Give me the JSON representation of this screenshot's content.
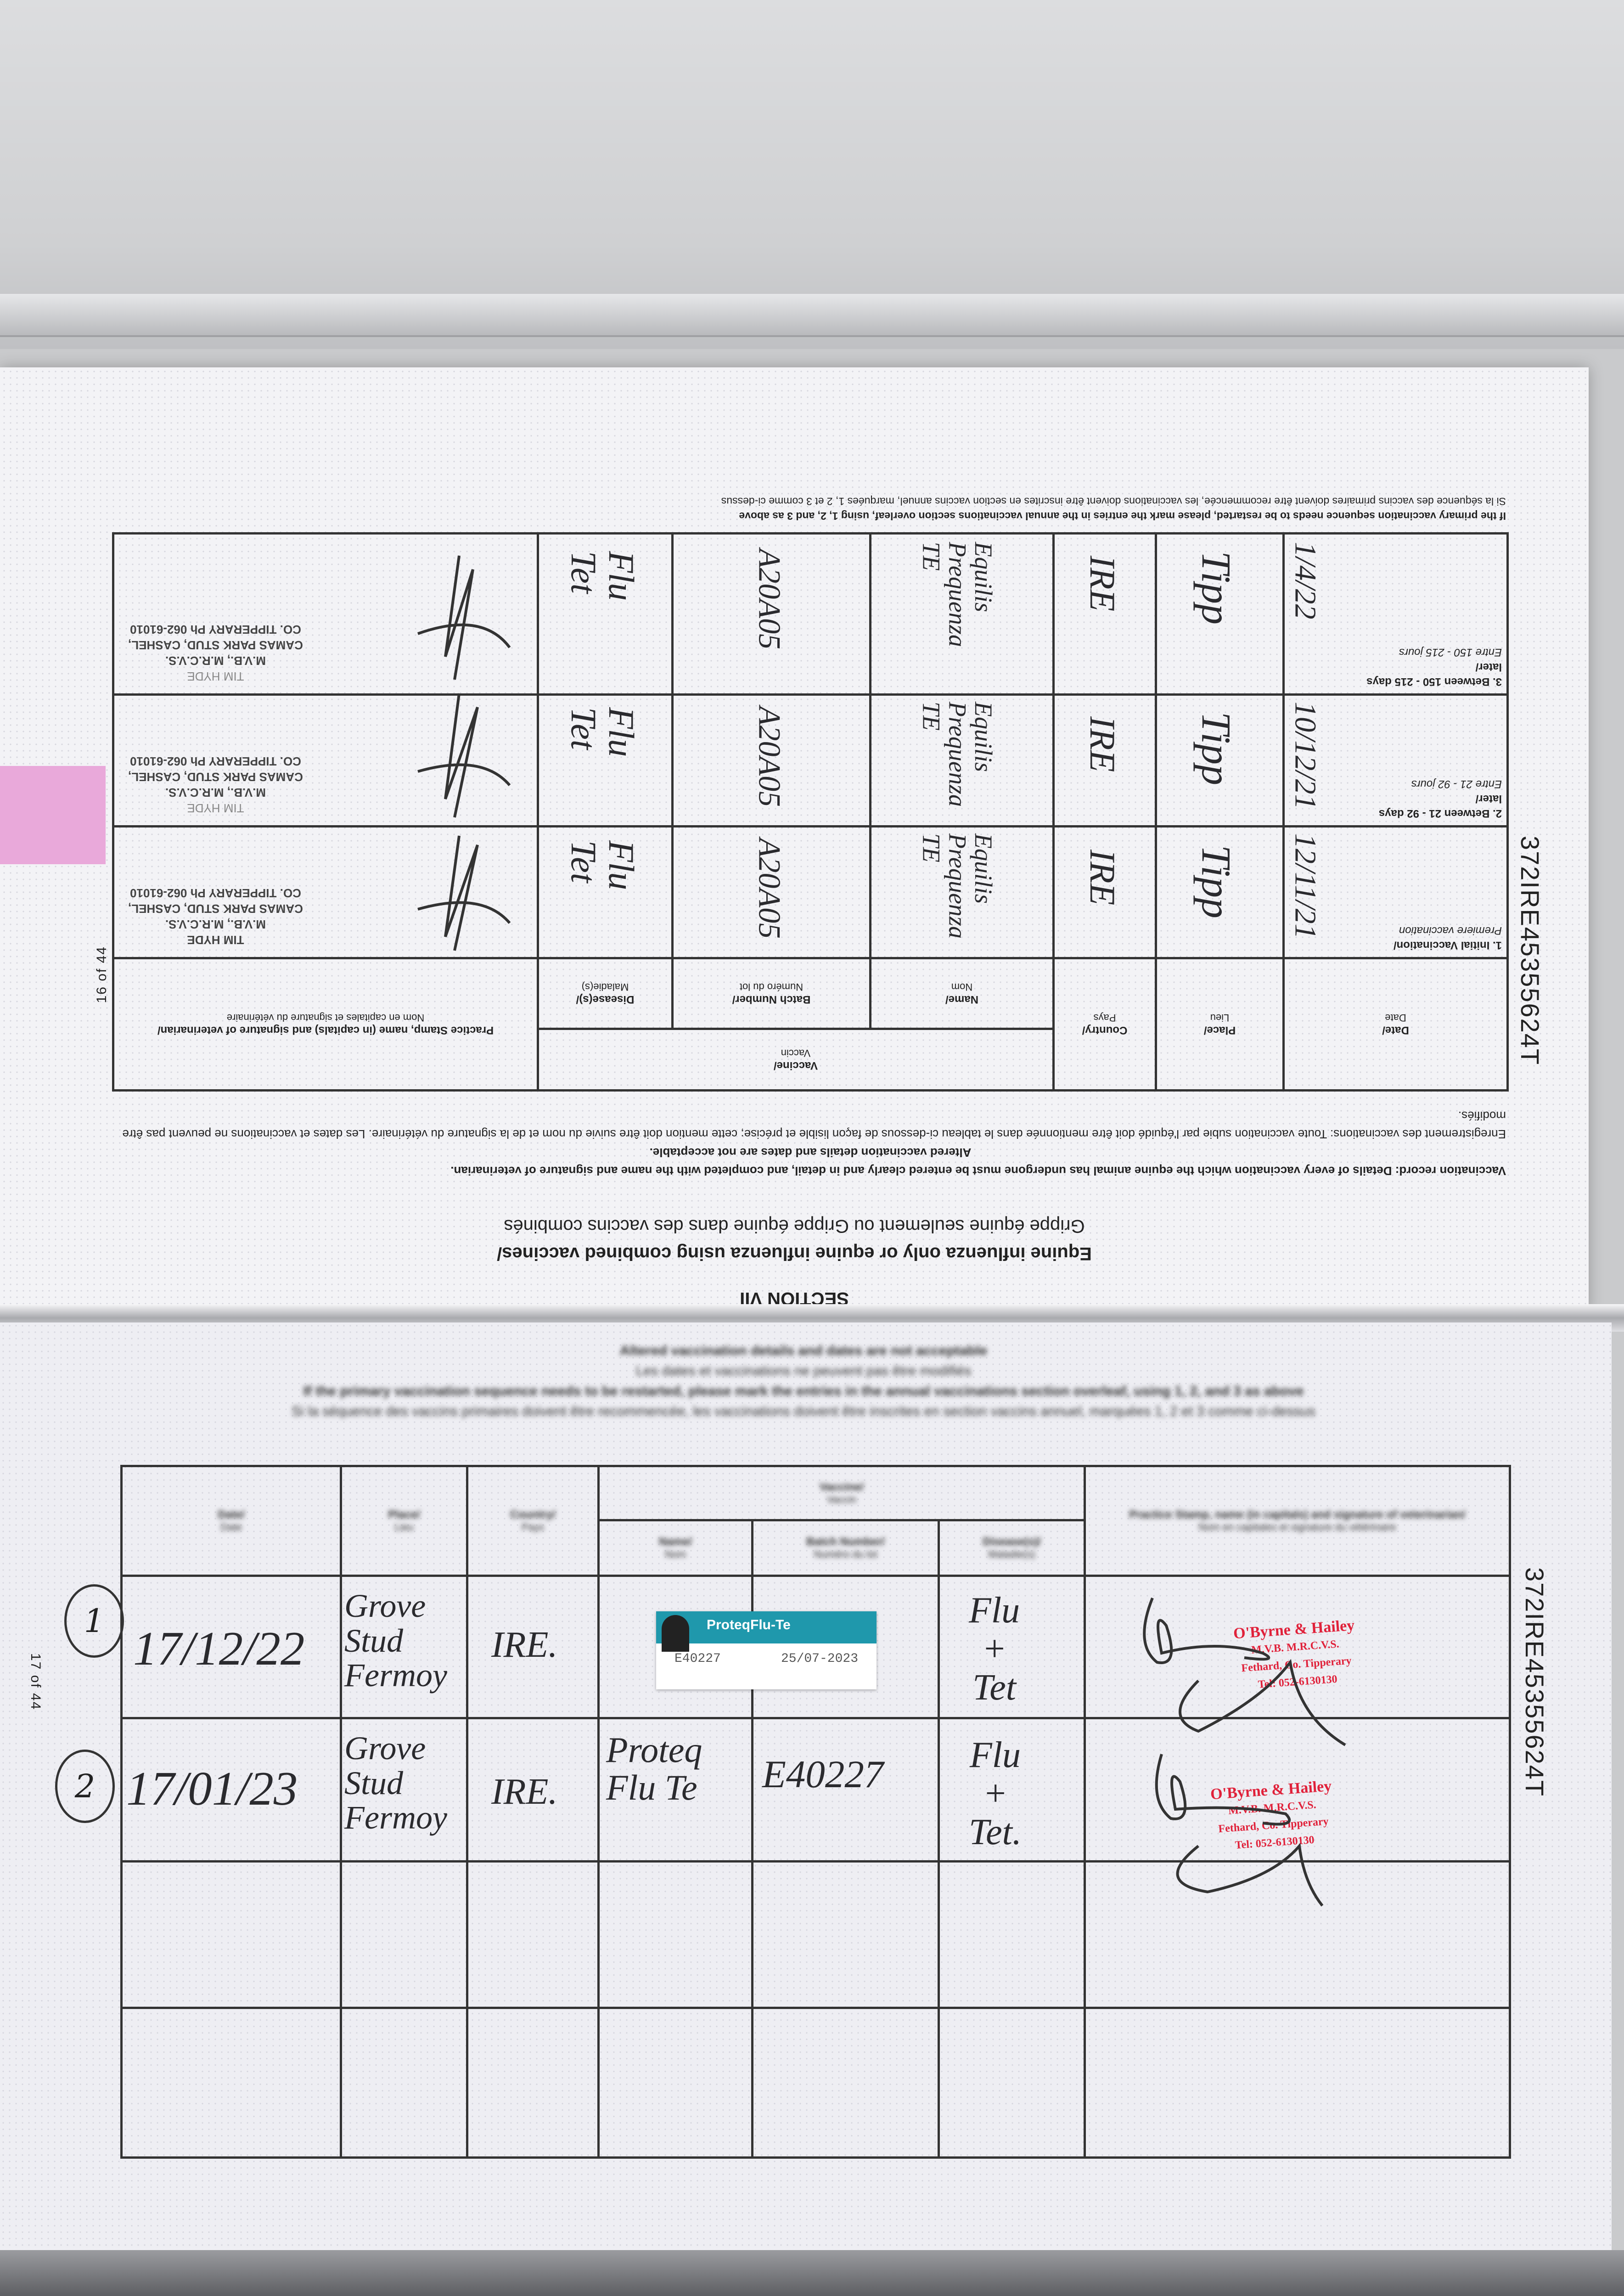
{
  "upper_page": {
    "section": "SECTION VII",
    "title_en": "Equine influenza only or equine influenza using combined vaccines/",
    "title_fr": "Grippe équine seulement ou Grippe équine dans des vaccins combinés",
    "instructions_en": "Vaccination record: Details of every vaccination which the equine animal has undergone must be entered clearly and in detail, and completed with the name and signature of veterinarian.",
    "instructions_en_bold": "Altered vaccination details and dates are not acceptable.",
    "instructions_fr": "Enregistrement des vaccinations: Toute vaccination subie par l'équidé doit être mentionnée dans le tableau ci-dessous de façon lisible et précise; cette mention doit être suivie du nom et de la signature du vétérinaire. Les dates et vaccinations ne peuvent pas être modifiés.",
    "headers": {
      "date_en": "Date/",
      "date_fr": "Date",
      "place_en": "Place/",
      "place_fr": "Lieu",
      "country_en": "Country/",
      "country_fr": "Pays",
      "vaccine_en": "Vaccine/",
      "vaccine_fr": "Vaccin",
      "name_en": "Name/",
      "name_fr": "Nom",
      "batch_en": "Batch Number/",
      "batch_fr": "Numéro du lot",
      "disease_en": "Disease(s)/",
      "disease_fr": "Maladie(s)",
      "stamp_en": "Practice Stamp, name (in capitals) and signature of veterinarian/",
      "stamp_fr": "Nom en capitales et signature du vétérinaire"
    },
    "rows": [
      {
        "label_en": "1. Initial Vaccination/",
        "label_fr": "Premiere vaccination",
        "date": "12/11/21",
        "place": "Tipp",
        "country": "IRE",
        "vaccine_name": "Equilis\nPrequenza\nTE",
        "batch": "A20A05",
        "diseases": "Flu\nTet"
      },
      {
        "label_en": "2. Between 21 - 92 days later/",
        "label_fr": "Entre 21 - 92 jours",
        "date": "10/12/21",
        "place": "Tipp",
        "country": "IRE",
        "vaccine_name": "Equilis\nPrequenza\nTE",
        "batch": "A20A05",
        "diseases": "Flu\nTet"
      },
      {
        "label_en": "3. Between 150 - 215 days later/",
        "label_fr": "Entre 150 - 215 jours",
        "date": "1/4/22",
        "place": "Tipp",
        "country": "IRE",
        "vaccine_name": "Equilis\nPrequenza\nTE",
        "batch": "A20A05",
        "diseases": "Flu\nTet"
      }
    ],
    "vet_stamp": {
      "name": "TIM HYDE",
      "quals": "M.V.B., M.R.C.V.S.",
      "address": "CAMAS PARK STUD, CASHEL,",
      "county": "CO. TIPPERARY Ph 062-61010"
    },
    "footnote_en": "If the primary vaccination sequence needs to be restarted, please mark the entries in the annual vaccinations section overleaf, using 1, 2, and 3 as above",
    "footnote_fr": "Si la séquence des vaccins primaires doivent être recommencée, les vaccinations doivent être inscrites en section vaccins annuel, marquées 1, 2 et 3 comme ci-dessus",
    "page_number": "16 of 44",
    "passport_number": "372IRE45355624T",
    "tab_color": "#e9a9da"
  },
  "lower_page": {
    "notice_en": "Altered vaccination details and dates are not acceptable",
    "notice_fr": "Les dates et vaccinations ne peuvent pas être modifiés",
    "footnote_en": "If the primary vaccination sequence needs to be restarted, please mark the entries in the annual vaccinations section overleaf, using 1, 2, and 3 as above",
    "footnote_fr": "Si la séquence des vaccins primaires doivent être recommencée, les vaccinations doivent être inscrites en section vaccins annuel, marquées 1, 2 et 3 comme ci-dessus",
    "headers": {
      "date_en": "Date/",
      "date_fr": "Date",
      "place_en": "Place/",
      "place_fr": "Lieu",
      "country_en": "Country/",
      "country_fr": "Pays",
      "vaccine_en": "Vaccine/",
      "vaccine_fr": "Vaccin",
      "name_en": "Name/",
      "name_fr": "Nom",
      "batch_en": "Batch Number/",
      "batch_fr": "Numéro du lot",
      "disease_en": "Disease(s)/",
      "disease_fr": "Maladie(s)",
      "stamp_en": "Practice Stamp, name (in capitals) and signature of veterinarian/",
      "stamp_fr": "Nom en capitales et signature du vétérinaire"
    },
    "rows": [
      {
        "index": "1",
        "date": "17/12/22",
        "place": "Grove\nStud\nFermoy",
        "country": "IRE.",
        "vaccine_name": "",
        "batch": "",
        "diseases": "Flu\n+\nTet"
      },
      {
        "index": "2",
        "date": "17/01/23",
        "place": "Grove\nStud\nFermoy",
        "country": "IRE.",
        "vaccine_name": "Proteq\nFlu Te",
        "batch": "E40227",
        "diseases": "Flu\n+\nTet."
      }
    ],
    "sticker": {
      "brand": "ProteqFlu-Te",
      "batch": "E40227",
      "expiry": "25/07-2023",
      "color": "#1f98ac"
    },
    "vet_stamp": {
      "name": "O'Byrne & Hailey",
      "quals": "M.V.B. M.R.C.V.S.",
      "address": "Fethard, Co. Tipperary",
      "phone": "Tel: 052-6130130",
      "color": "#e0213a"
    },
    "page_number": "17 of 44",
    "passport_number": "372IRE45355624T"
  }
}
